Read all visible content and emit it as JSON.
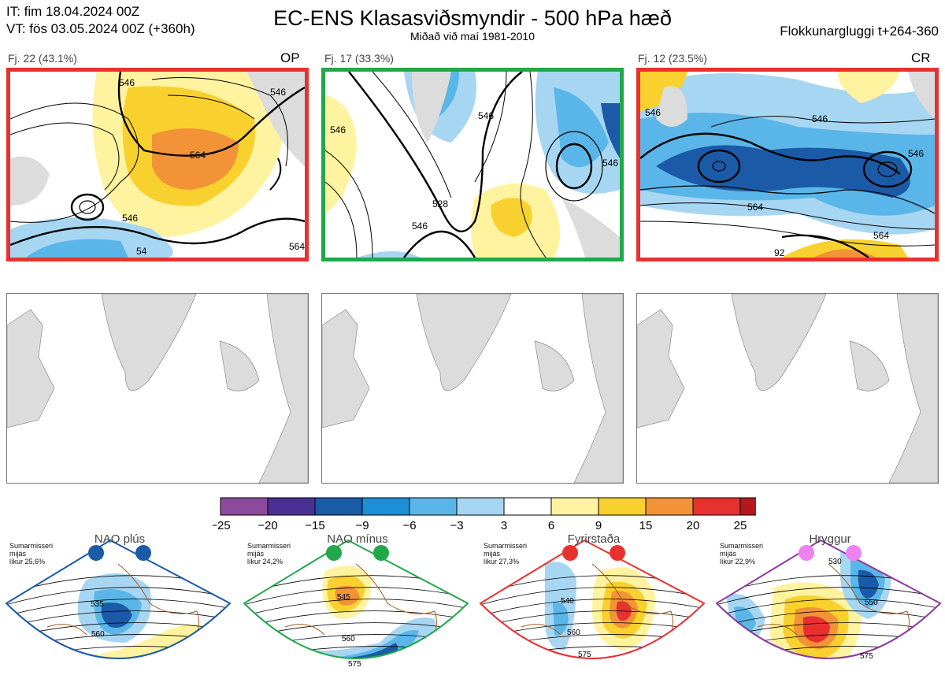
{
  "header": {
    "init_time": "IT: fim 18.04.2024 00Z",
    "valid_time": "VT: fös 03.05.2024 00Z  (+360h)",
    "title": "EC-ENS Klasasviðsmyndir - 500 hPa hæð",
    "subtitle": "Miðað við maí 1981-2010",
    "window": "Flokkunargluggi t+264-360"
  },
  "clusters": [
    {
      "label": "Fj. 22 (43.1%)",
      "tag": "OP",
      "border_color": "#e8312f",
      "contours": [
        "546",
        "546",
        "564",
        "546",
        "564",
        "54"
      ]
    },
    {
      "label": "Fj. 17 (33.3%)",
      "tag": "",
      "border_color": "#21a84a",
      "contours": [
        "546",
        "546",
        "528",
        "546",
        "546"
      ]
    },
    {
      "label": "Fj. 12 (23.5%)",
      "tag": "CR",
      "border_color": "#e8312f",
      "contours": [
        "546",
        "546",
        "546",
        "564",
        "564",
        "92"
      ]
    }
  ],
  "colorbar": {
    "ticks": [
      "−25",
      "−20",
      "−15",
      "−9",
      "−6",
      "−3",
      "3",
      "6",
      "9",
      "15",
      "20",
      "25"
    ],
    "colors": [
      "#8d4a9c",
      "#4a2f94",
      "#1b5aa7",
      "#1d8fd6",
      "#5ab6e8",
      "#a7d6f2",
      "#ffffff",
      "#fff3a0",
      "#f9d12f",
      "#f29337",
      "#e8312f",
      "#b4181c"
    ]
  },
  "regimes": [
    {
      "title": "NAO plús",
      "note": [
        "Sumarmisseri",
        "mijás",
        "líkur 25,6%"
      ],
      "dot_color": "#1b5aa7",
      "border_color": "#1b5aa7",
      "contours": [
        "535",
        "560"
      ]
    },
    {
      "title": "NAO mínus",
      "note": [
        "Sumarmisseri",
        "mijás",
        "líkur 24,2%"
      ],
      "dot_color": "#21a84a",
      "border_color": "#21a84a",
      "contours": [
        "545",
        "560",
        "575"
      ]
    },
    {
      "title": "Fyrirstaða",
      "note": [
        "Sumarmisseri",
        "mijás",
        "líkur 27,3%"
      ],
      "dot_color": "#e8312f",
      "border_color": "#e8312f",
      "contours": [
        "540",
        "560",
        "575"
      ]
    },
    {
      "title": "Hryggur",
      "note": [
        "Sumarmisseri",
        "mijás",
        "líkur 22,9%"
      ],
      "dot_color": "#ee82ee",
      "border_color": "#8b3c9c",
      "contours": [
        "530",
        "550",
        "575"
      ]
    }
  ]
}
